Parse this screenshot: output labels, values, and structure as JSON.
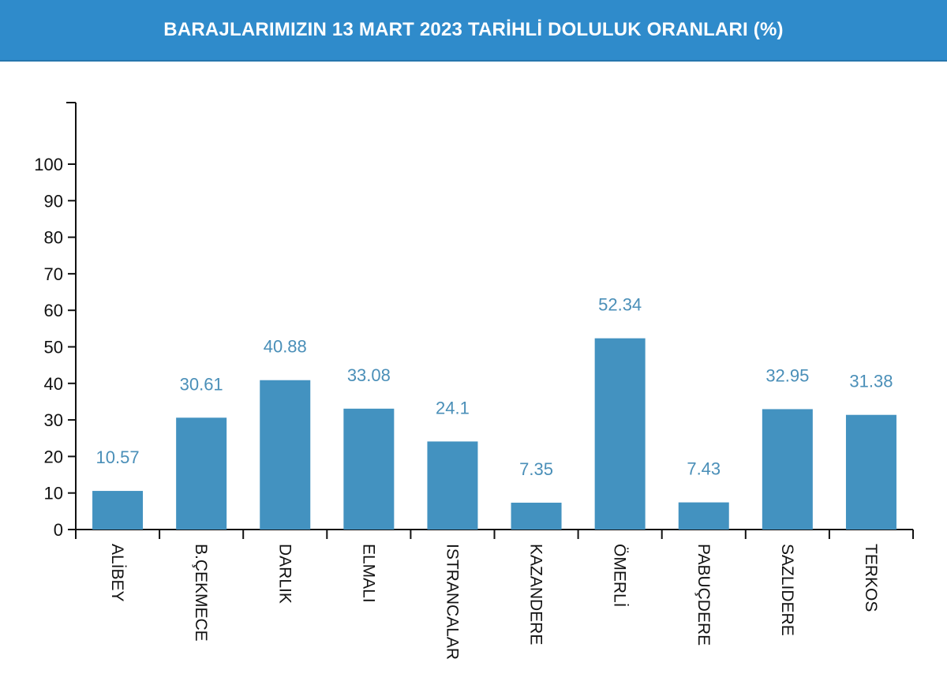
{
  "header": {
    "title": "BARAJLARIMIZIN 13 MART 2023 TARİHLİ DOLULUK ORANLARI (%)"
  },
  "chart_data": {
    "type": "bar",
    "title": "BARAJLARIMIZIN 13 MART 2023 TARİHLİ DOLULUK ORANLARI (%)",
    "categories": [
      "ALİBEY",
      "B.ÇEKMECE",
      "DARLIK",
      "ELMALI",
      "ISTRANCALAR",
      "KAZANDERE",
      "ÖMERLİ",
      "PABUÇDERE",
      "SAZLIDERE",
      "TERKOS"
    ],
    "values": [
      10.57,
      30.61,
      40.88,
      33.08,
      24.1,
      7.35,
      52.34,
      7.43,
      32.95,
      31.38
    ],
    "value_labels": [
      "10.57",
      "30.61",
      "40.88",
      "33.08",
      "24.1",
      "7.35",
      "52.34",
      "7.43",
      "32.95",
      "31.38"
    ],
    "yticks": [
      0,
      10,
      20,
      30,
      40,
      50,
      60,
      70,
      80,
      90,
      100
    ],
    "ylim": [
      0,
      117
    ],
    "xlabel": "",
    "ylabel": "",
    "grid": false,
    "colors": {
      "bar": "#4392c0",
      "value_label": "#4a8fb8",
      "header_bg": "#2f8bcb",
      "axis": "#111111"
    }
  }
}
